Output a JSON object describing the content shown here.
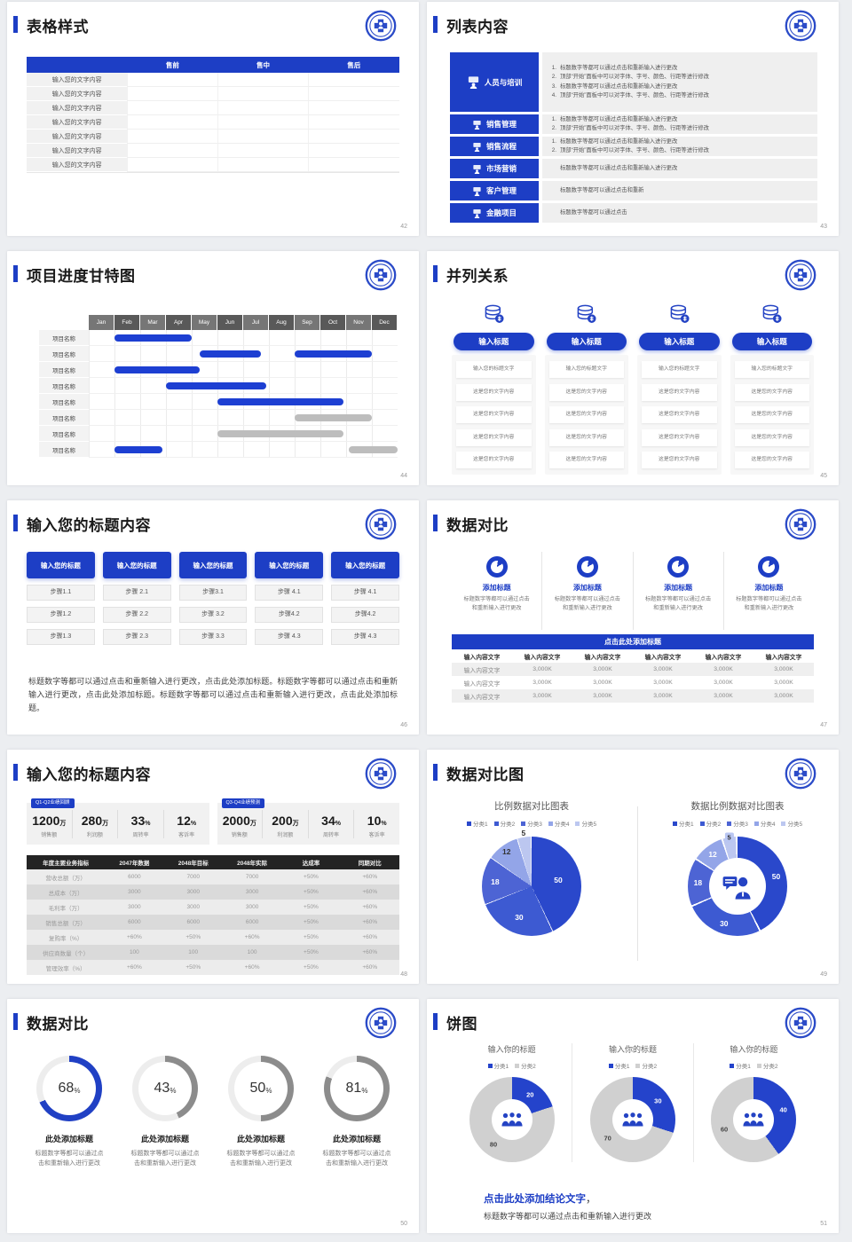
{
  "theme": {
    "accent": "#1d3ec5",
    "bar_blue": "#1d3fd2",
    "bar_gray": "#bdbdbd",
    "table_header_dark": "#242424"
  },
  "slides": {
    "s42": {
      "title": "表格样式",
      "page": "42",
      "table": {
        "cols": [
          "售前",
          "售中",
          "售后"
        ],
        "row_labels": [
          "输入您的文字内容",
          "输入您的文字内容",
          "输入您的文字内容",
          "输入您的文字内容",
          "输入您的文字内容",
          "输入您的文字内容",
          "输入您的文字内容"
        ]
      }
    },
    "s43": {
      "title": "列表内容",
      "page": "43",
      "items": [
        {
          "label": "人员与培训",
          "icon": "training-icon",
          "size": "tall",
          "lines": [
            {
              "n": "1.",
              "t": "标题数字等都可以通过点击和重新输入进行更改"
            },
            {
              "n": "2.",
              "t": "顶部“开始”面板中可以对字体、字号、颜色、行距等进行修改"
            },
            {
              "n": "3.",
              "t": "标题数字等都可以通过点击和重新输入进行更改"
            },
            {
              "n": "4.",
              "t": "顶部“开始”面板中可以对字体、字号、颜色、行距等进行修改"
            }
          ]
        },
        {
          "label": "销售管理",
          "icon": "sales-management-icon",
          "size": "small",
          "lines": [
            {
              "n": "1.",
              "t": "标题数字等都可以通过点击和重新输入进行更改"
            },
            {
              "n": "2.",
              "t": "顶部“开始”面板中可以对字体、字号、颜色、行距等进行修改"
            }
          ]
        },
        {
          "label": "销售流程",
          "icon": "sales-process-icon",
          "size": "small",
          "lines": [
            {
              "n": "1.",
              "t": "标题数字等都可以通过点击和重新输入进行更改"
            },
            {
              "n": "2.",
              "t": "顶部“开始”面板中可以对字体、字号、颜色、行距等进行修改"
            }
          ]
        },
        {
          "label": "市场营销",
          "icon": "marketing-icon",
          "size": "small",
          "lines": [
            {
              "n": "",
              "t": "标题数字等都可以通过点击和重新输入进行更改"
            }
          ]
        },
        {
          "label": "客户管理",
          "icon": "customer-icon",
          "size": "small",
          "lines": [
            {
              "n": "",
              "t": "标题数字等都可以通过点击和重新"
            }
          ]
        },
        {
          "label": "金融项目",
          "icon": "finance-icon",
          "size": "small",
          "lines": [
            {
              "n": "",
              "t": "标题数字等都可以通过点击"
            }
          ]
        }
      ]
    },
    "s44": {
      "title": "项目进度甘特图",
      "page": "44",
      "months": [
        "Jan",
        "Feb",
        "Mar",
        "Apr",
        "May",
        "Jun",
        "Jul",
        "Aug",
        "Sep",
        "Oct",
        "Nov",
        "Dec"
      ],
      "rows": [
        {
          "label": "项目名称",
          "bars": [
            {
              "s": 1.0,
              "e": 4.0,
              "c": "blue"
            }
          ]
        },
        {
          "label": "项目名称",
          "bars": [
            {
              "s": 4.3,
              "e": 6.7,
              "c": "blue"
            },
            {
              "s": 8.0,
              "e": 11.0,
              "c": "blue"
            }
          ]
        },
        {
          "label": "项目名称",
          "bars": [
            {
              "s": 1.0,
              "e": 4.3,
              "c": "blue"
            }
          ]
        },
        {
          "label": "项目名称",
          "bars": [
            {
              "s": 3.0,
              "e": 6.9,
              "c": "blue"
            }
          ]
        },
        {
          "label": "项目名称",
          "bars": [
            {
              "s": 5.0,
              "e": 9.9,
              "c": "blue"
            }
          ]
        },
        {
          "label": "项目名称",
          "bars": [
            {
              "s": 8.0,
              "e": 11.0,
              "c": "gray"
            }
          ]
        },
        {
          "label": "项目名称",
          "bars": [
            {
              "s": 5.0,
              "e": 9.9,
              "c": "gray"
            }
          ]
        },
        {
          "label": "项目名称",
          "bars": [
            {
              "s": 1.0,
              "e": 2.85,
              "c": "blue"
            },
            {
              "s": 10.1,
              "e": 12.0,
              "c": "gray"
            }
          ]
        }
      ]
    },
    "s45": {
      "title": "并列关系",
      "page": "45",
      "columns": [
        {
          "title": "输入标题",
          "cards": [
            "输入您的标题文字",
            "这是您的文字内容",
            "这是您的文字内容",
            "这是您的文字内容",
            "这是您的文字内容"
          ]
        },
        {
          "title": "输入标题",
          "cards": [
            "输入您的标题文字",
            "这是您的文字内容",
            "这是您的文字内容",
            "这是您的文字内容",
            "这是您的文字内容"
          ]
        },
        {
          "title": "输入标题",
          "cards": [
            "输入您的标题文字",
            "这是您的文字内容",
            "这是您的文字内容",
            "这是您的文字内容",
            "这是您的文字内容"
          ]
        },
        {
          "title": "输入标题",
          "cards": [
            "输入您的标题文字",
            "这是您的文字内容",
            "这是您的文字内容",
            "这是您的文字内容",
            "这是您的文字内容"
          ]
        }
      ]
    },
    "s46": {
      "title": "输入您的标题内容",
      "page": "46",
      "columns": [
        {
          "header": "输入您的标题",
          "steps": [
            "步骤1.1",
            "步骤1.2",
            "步骤1.3"
          ]
        },
        {
          "header": "输入您的标题",
          "steps": [
            "步骤 2.1",
            "步骤 2.2",
            "步骤 2.3"
          ]
        },
        {
          "header": "输入您的标题",
          "steps": [
            "步骤3.1",
            "步骤 3.2",
            "步骤 3.3"
          ]
        },
        {
          "header": "输入您的标题",
          "steps": [
            "步骤 4.1",
            "步骤4.2",
            "步骤 4.3"
          ]
        },
        {
          "header": "输入您的标题",
          "steps": [
            "步骤 4.1",
            "步骤4.2",
            "步骤 4.3"
          ]
        }
      ],
      "paragraph": "标题数字等都可以通过点击和重新输入进行更改，点击此处添加标题。标题数字等都可以通过点击和重新输入进行更改，点击此处添加标题。标题数字等都可以通过点击和重新输入进行更改，点击此处添加标题。"
    },
    "s47": {
      "title": "数据对比",
      "page": "47",
      "features": [
        {
          "title": "添加标题",
          "text": "标题数字等都可以通过点击和重新输入进行更改"
        },
        {
          "title": "添加标题",
          "text": "标题数字等都可以通过点击和重新输入进行更改"
        },
        {
          "title": "添加标题",
          "text": "标题数字等都可以通过点击和重新输入进行更改"
        },
        {
          "title": "添加标题",
          "text": "标题数字等都可以通过点击和重新输入进行更改"
        }
      ],
      "banner": "点击此处添加标题",
      "table": {
        "header": [
          "输入内容文字",
          "输入内容文字",
          "输入内容文字",
          "输入内容文字",
          "输入内容文字",
          "输入内容文字"
        ],
        "rows": [
          [
            "输入内容文字",
            "3,000K",
            "3,000K",
            "3,000K",
            "3,000K",
            "3,000K"
          ],
          [
            "输入内容文字",
            "3,000K",
            "3,000K",
            "3,000K",
            "3,000K",
            "3,000K"
          ],
          [
            "输入内容文字",
            "3,000K",
            "3,000K",
            "3,000K",
            "3,000K",
            "3,000K"
          ]
        ]
      }
    },
    "s48": {
      "title": "输入您的标题内容",
      "page": "48",
      "panels": [
        {
          "tag": "Q1-Q2业绩回顾",
          "metrics": [
            {
              "v": "1200",
              "u": "万",
              "l": "销售额"
            },
            {
              "v": "280",
              "u": "万",
              "l": "利润额"
            },
            {
              "v": "33",
              "u": "%",
              "l": "周转率"
            },
            {
              "v": "12",
              "u": "%",
              "l": "客诉率"
            }
          ]
        },
        {
          "tag": "Q3-Q4业绩预测",
          "metrics": [
            {
              "v": "2000",
              "u": "万",
              "l": "销售额"
            },
            {
              "v": "200",
              "u": "万",
              "l": "利润额"
            },
            {
              "v": "34",
              "u": "%",
              "l": "周转率"
            },
            {
              "v": "10",
              "u": "%",
              "l": "客诉率"
            }
          ]
        }
      ],
      "table": {
        "header": [
          "年度主要业务指标",
          "2047年数据",
          "2048年目标",
          "2048年实际",
          "达成率",
          "同期对比"
        ],
        "rows": [
          [
            "营收总额（万）",
            "6000",
            "7000",
            "7000",
            "+50%",
            "+60%"
          ],
          [
            "总成本（万）",
            "3000",
            "3000",
            "3000",
            "+50%",
            "+60%"
          ],
          [
            "毛利率（万）",
            "3000",
            "3000",
            "3000",
            "+50%",
            "+60%"
          ],
          [
            "销售总额（万）",
            "6000",
            "6000",
            "6000",
            "+50%",
            "+60%"
          ],
          [
            "复购率（%）",
            "+60%",
            "+50%",
            "+60%",
            "+50%",
            "+60%"
          ],
          [
            "供应商数量（个）",
            "100",
            "100",
            "100",
            "+50%",
            "+60%"
          ],
          [
            "管理效率（%）",
            "+60%",
            "+50%",
            "+60%",
            "+50%",
            "+60%"
          ]
        ]
      }
    },
    "s49": {
      "title": "数据对比图",
      "page": "49",
      "colors": [
        "#2a48cb",
        "#3d5ad2",
        "#4d64d4",
        "#93a5e8",
        "#bcc7f0"
      ],
      "charts": [
        {
          "title": "比例数据对比图表",
          "legend": [
            "分类1",
            "分类2",
            "分类3",
            "分类4",
            "分类5"
          ],
          "values": [
            50,
            30,
            18,
            12,
            5
          ]
        },
        {
          "title": "数据比例数据对比图表",
          "legend": [
            "分类1",
            "分类2",
            "分类3",
            "分类4",
            "分类5"
          ],
          "values": [
            50,
            30,
            18,
            12,
            5
          ]
        }
      ]
    },
    "s50": {
      "title": "数据对比",
      "page": "50",
      "items": [
        {
          "pct": 68,
          "unit": "%",
          "accent": true,
          "title": "此处添加标题",
          "text": "标题数字等都可以通过点击和重新输入进行更改"
        },
        {
          "pct": 43,
          "unit": "%",
          "accent": false,
          "title": "此处添加标题",
          "text": "标题数字等都可以通过点击和重新输入进行更改"
        },
        {
          "pct": 50,
          "unit": "%",
          "accent": false,
          "title": "此处添加标题",
          "text": "标题数字等都可以通过点击和重新输入进行更改"
        },
        {
          "pct": 81,
          "unit": "%",
          "accent": false,
          "title": "此处添加标题",
          "text": "标题数字等都可以通过点击和重新输入进行更改"
        }
      ]
    },
    "s51": {
      "title": "饼图",
      "page": "51",
      "colors": [
        "#2443cb",
        "#d0d0d0"
      ],
      "charts": [
        {
          "title": "输入你的标题",
          "legend": [
            "分类1",
            "分类2"
          ],
          "values": [
            20,
            80
          ]
        },
        {
          "title": "输入你的标题",
          "legend": [
            "分类1",
            "分类2"
          ],
          "values": [
            30,
            70
          ]
        },
        {
          "title": "输入你的标题",
          "legend": [
            "分类1",
            "分类2"
          ],
          "values": [
            40,
            60
          ]
        }
      ],
      "conclusion": "点击此处添加结论文字",
      "comma": "，",
      "note": "标题数字等都可以通过点击和重新输入进行更改"
    }
  },
  "chart_data": [
    {
      "type": "table",
      "title": "表格样式",
      "columns": [
        "",
        "售前",
        "售中",
        "售后"
      ],
      "rows": 7,
      "row_label": "输入您的文字内容"
    },
    {
      "type": "bar",
      "subtype": "gantt",
      "title": "项目进度甘特图",
      "x": [
        "Jan",
        "Feb",
        "Mar",
        "Apr",
        "May",
        "Jun",
        "Jul",
        "Aug",
        "Sep",
        "Oct",
        "Nov",
        "Dec"
      ],
      "rows": [
        {
          "label": "项目名称",
          "bars": [
            {
              "start": 1.0,
              "end": 4.0,
              "color": "blue"
            }
          ]
        },
        {
          "label": "项目名称",
          "bars": [
            {
              "start": 4.3,
              "end": 6.7,
              "color": "blue"
            },
            {
              "start": 8.0,
              "end": 11.0,
              "color": "blue"
            }
          ]
        },
        {
          "label": "项目名称",
          "bars": [
            {
              "start": 1.0,
              "end": 4.3,
              "color": "blue"
            }
          ]
        },
        {
          "label": "项目名称",
          "bars": [
            {
              "start": 3.0,
              "end": 6.9,
              "color": "blue"
            }
          ]
        },
        {
          "label": "项目名称",
          "bars": [
            {
              "start": 5.0,
              "end": 9.9,
              "color": "blue"
            }
          ]
        },
        {
          "label": "项目名称",
          "bars": [
            {
              "start": 8.0,
              "end": 11.0,
              "color": "gray"
            }
          ]
        },
        {
          "label": "项目名称",
          "bars": [
            {
              "start": 5.0,
              "end": 9.9,
              "color": "gray"
            }
          ]
        },
        {
          "label": "项目名称",
          "bars": [
            {
              "start": 1.0,
              "end": 2.85,
              "color": "blue"
            },
            {
              "start": 10.1,
              "end": 12.0,
              "color": "gray"
            }
          ]
        }
      ]
    },
    {
      "type": "pie",
      "title": "比例数据对比图表",
      "labels": [
        "分类1",
        "分类2",
        "分类3",
        "分类4",
        "分类5"
      ],
      "values": [
        50,
        30,
        18,
        12,
        5
      ],
      "legend_position": "top"
    },
    {
      "type": "pie",
      "title": "数据比例数据对比图表",
      "style": "donut",
      "labels": [
        "分类1",
        "分类2",
        "分类3",
        "分类4",
        "分类5"
      ],
      "values": [
        50,
        30,
        18,
        12,
        5
      ],
      "legend_position": "top"
    },
    {
      "type": "pie",
      "title": "数据对比 环形进度",
      "style": "progress-rings",
      "values": [
        68,
        43,
        50,
        81
      ],
      "unit": "%"
    },
    {
      "type": "pie",
      "title": "饼图",
      "style": "donut-series",
      "labels": [
        "分类1",
        "分类2"
      ],
      "series": [
        {
          "values": [
            20,
            80
          ]
        },
        {
          "values": [
            30,
            70
          ]
        },
        {
          "values": [
            40,
            60
          ]
        }
      ]
    }
  ]
}
